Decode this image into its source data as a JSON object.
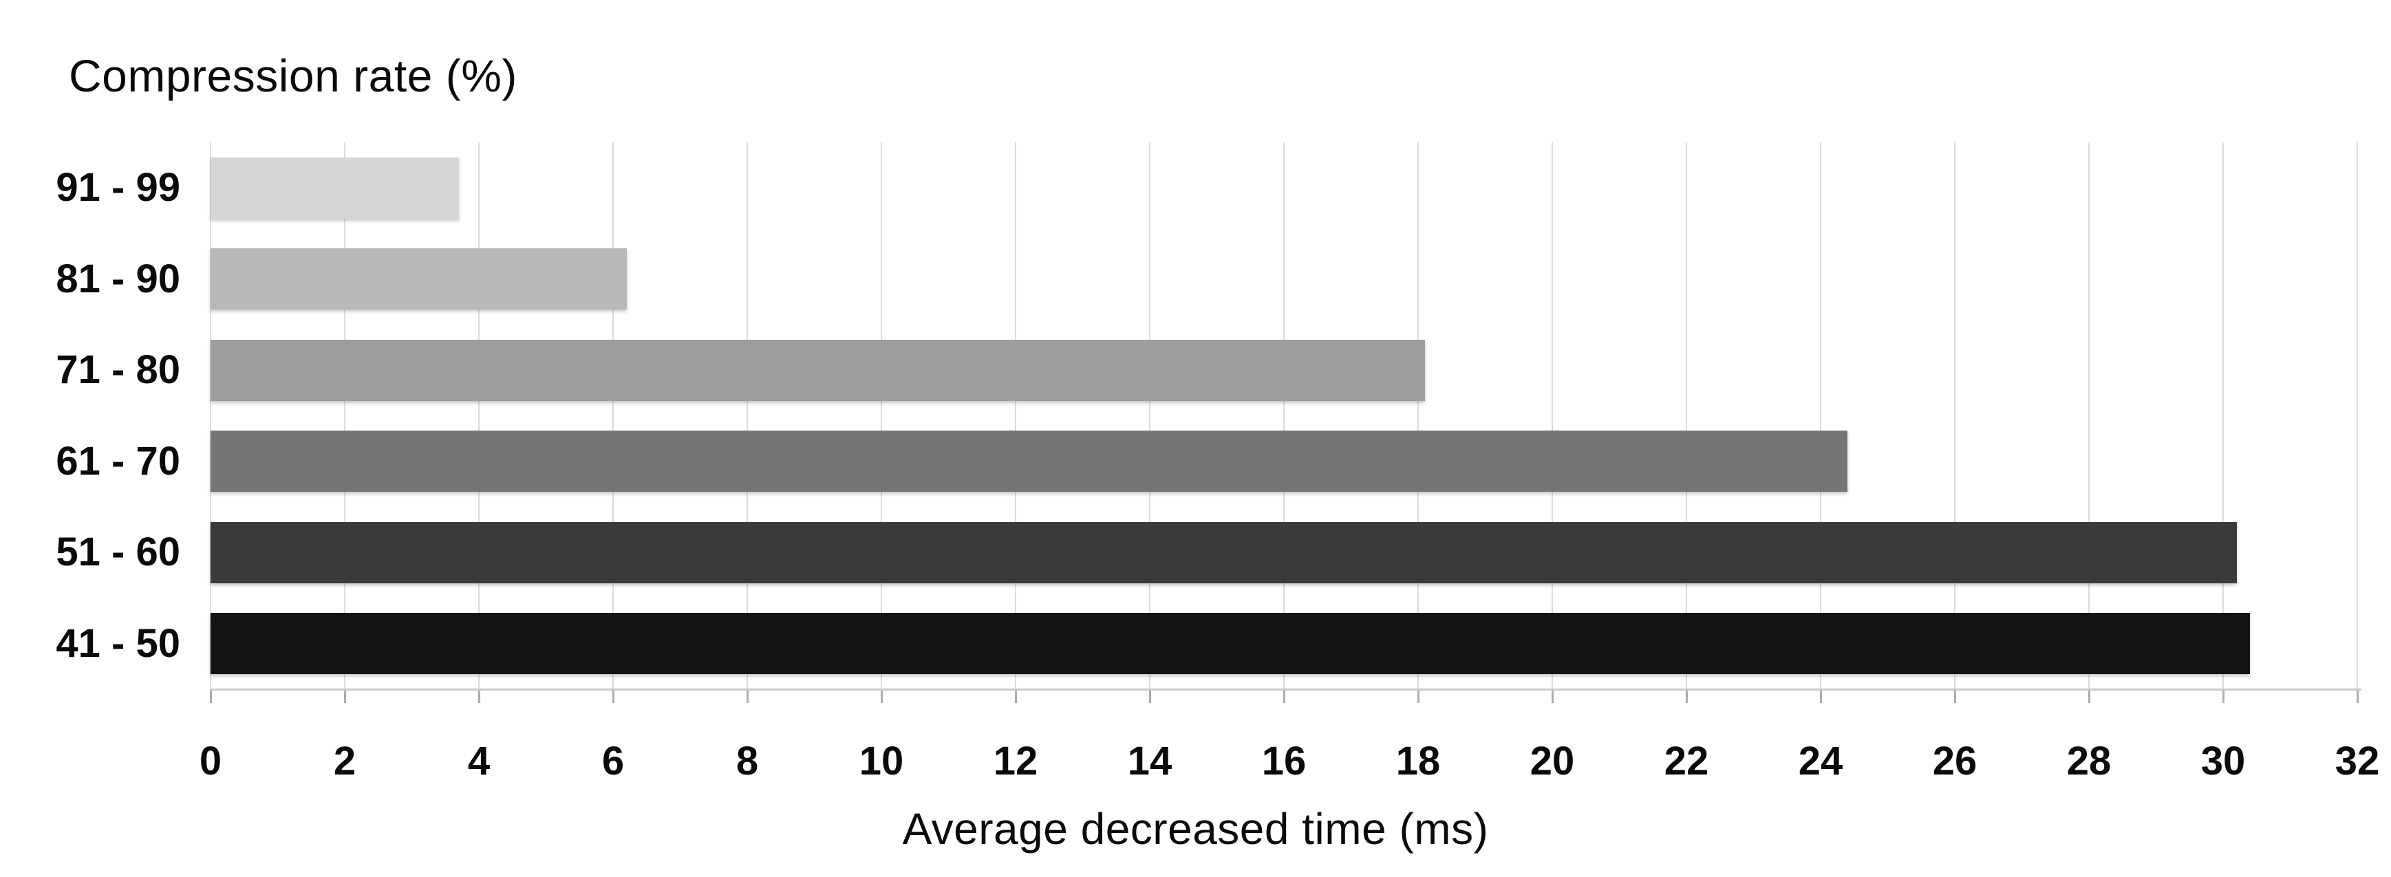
{
  "chart": {
    "title": "Compression rate (%)",
    "x_axis_title": "Average decreased time (ms)"
  },
  "chart_data": {
    "type": "bar",
    "orientation": "horizontal",
    "title": "Compression rate (%)",
    "xlabel": "Average decreased time (ms)",
    "ylabel": "Compression rate (%)",
    "categories": [
      "91 - 99",
      "81 - 90",
      "71 - 80",
      "61 - 70",
      "51 - 60",
      "41 - 50"
    ],
    "values": [
      3.7,
      6.2,
      18.1,
      24.4,
      30.2,
      30.4
    ],
    "xlim": [
      0,
      32
    ],
    "x_ticks": [
      0,
      2,
      4,
      6,
      8,
      10,
      12,
      14,
      16,
      18,
      20,
      22,
      24,
      26,
      28,
      30,
      32
    ],
    "grid": "vertical-gridlines",
    "legend": "none",
    "bar_colors": [
      "#d6d6d6",
      "#b8b8b8",
      "#9d9d9d",
      "#757575",
      "#3a3a3a",
      "#141414"
    ],
    "gridline_color": "#dcdcdc",
    "axis_line_color": "#c8c8c8",
    "text_color": "#0a0a0a",
    "background_color": "#ffffff"
  }
}
